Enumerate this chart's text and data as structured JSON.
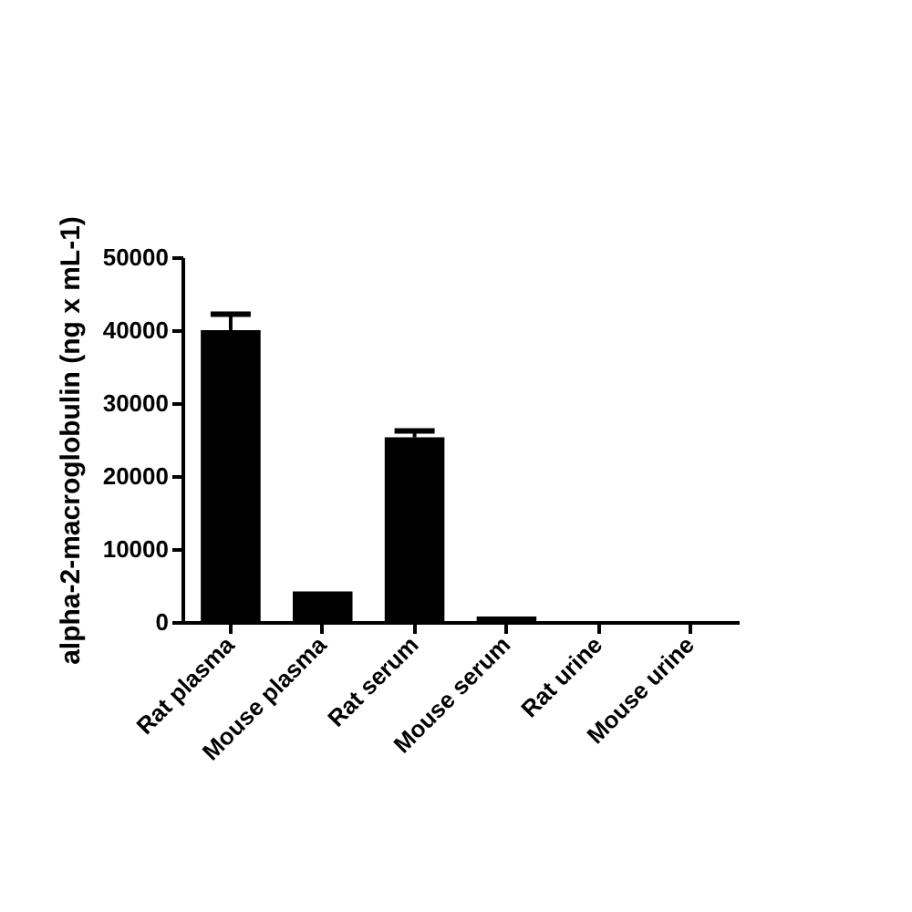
{
  "chart_data": {
    "type": "bar",
    "ylabel": "alpha-2-macroglobulin (ng x mL-1)",
    "categories": [
      "Rat plasma",
      "Mouse plasma",
      "Rat serum",
      "Mouse serum",
      "Rat urine",
      "Mouse urine"
    ],
    "values": [
      40000,
      4200,
      25300,
      750,
      0,
      0
    ],
    "errors": [
      [
        40000,
        42200
      ],
      null,
      [
        25300,
        26200
      ],
      null,
      null,
      null
    ],
    "color": "#000000",
    "ylim": [
      0,
      50000
    ],
    "yticks": [
      0,
      10000,
      20000,
      30000,
      40000,
      50000
    ],
    "grid": false
  }
}
